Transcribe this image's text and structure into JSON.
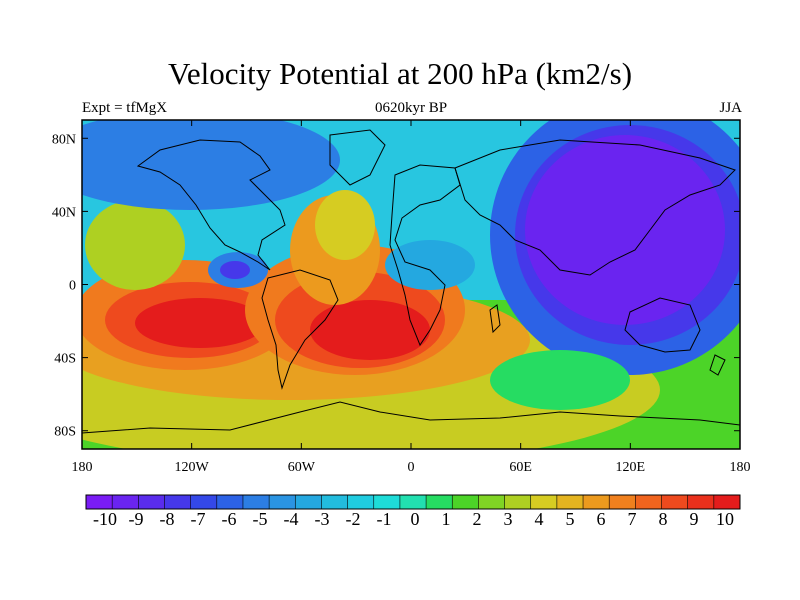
{
  "title": "Velocity Potential at 200 hPa (km2/s)",
  "subtitle_left": "Expt = tfMgX",
  "subtitle_center": "0620kyr BP",
  "subtitle_right": "JJA",
  "lat_labels": [
    "80N",
    "40N",
    "0",
    "40S",
    "80S"
  ],
  "lon_labels": [
    "180",
    "120W",
    "60W",
    "0",
    "60E",
    "120E",
    "180"
  ],
  "colorbar": {
    "labels": [
      "-10",
      "-9",
      "-8",
      "-7",
      "-6",
      "-5",
      "-4",
      "-3",
      "-2",
      "-1",
      "0",
      "1",
      "2",
      "3",
      "4",
      "5",
      "6",
      "7",
      "8",
      "9",
      "10"
    ],
    "colors": [
      "#7a1cf5",
      "#6a24f0",
      "#5a2cec",
      "#4638ea",
      "#3448e8",
      "#2c62e6",
      "#2c7ee4",
      "#2a94e2",
      "#24a8e0",
      "#22bcde",
      "#20cce0",
      "#1edcd8",
      "#22e0b0",
      "#26dc62",
      "#4cd428",
      "#80d424",
      "#aed022",
      "#d6cc22",
      "#e4b420",
      "#ec9a1e",
      "#f0801e",
      "#f0641e",
      "#ee4a1e",
      "#ea301c",
      "#e41c1c"
    ]
  },
  "chart_data": {
    "type": "heatmap",
    "title": "Velocity Potential at 200 hPa (km2/s)",
    "variable": "velocity potential at 200 hPa",
    "units": "km2/s",
    "experiment": "tfMgX",
    "period": "0620kyr BP",
    "season": "JJA",
    "x_ticks": [
      "180",
      "120W",
      "60W",
      "0",
      "60E",
      "120E",
      "180"
    ],
    "y_ticks": [
      "80N",
      "40N",
      "0",
      "40S",
      "80S"
    ],
    "x_range": [
      -180,
      180
    ],
    "y_range": [
      -90,
      90
    ],
    "color_levels": [
      -10,
      -9,
      -8,
      -7,
      -6,
      -5,
      -4,
      -3,
      -2,
      -1,
      0,
      1,
      2,
      3,
      4,
      5,
      6,
      7,
      8,
      9,
      10
    ],
    "features": [
      {
        "lon": 140,
        "lat": 18,
        "value": -10.5,
        "sx": 45,
        "sy": 40
      },
      {
        "lon": -100,
        "lat": 10,
        "value": -6,
        "sx": 14,
        "sy": 10
      },
      {
        "lon": 5,
        "lat": 12,
        "value": -3,
        "sx": 20,
        "sy": 14
      },
      {
        "lon": -130,
        "lat": -22,
        "value": 9,
        "sx": 32,
        "sy": 18
      },
      {
        "lon": -35,
        "lat": -22,
        "value": 9.5,
        "sx": 35,
        "sy": 25
      },
      {
        "lon": -160,
        "lat": 70,
        "value": -3,
        "sx": 45,
        "sy": 20
      },
      {
        "lon": 60,
        "lat": -40,
        "value": 5,
        "sx": 25,
        "sy": 15
      }
    ]
  }
}
